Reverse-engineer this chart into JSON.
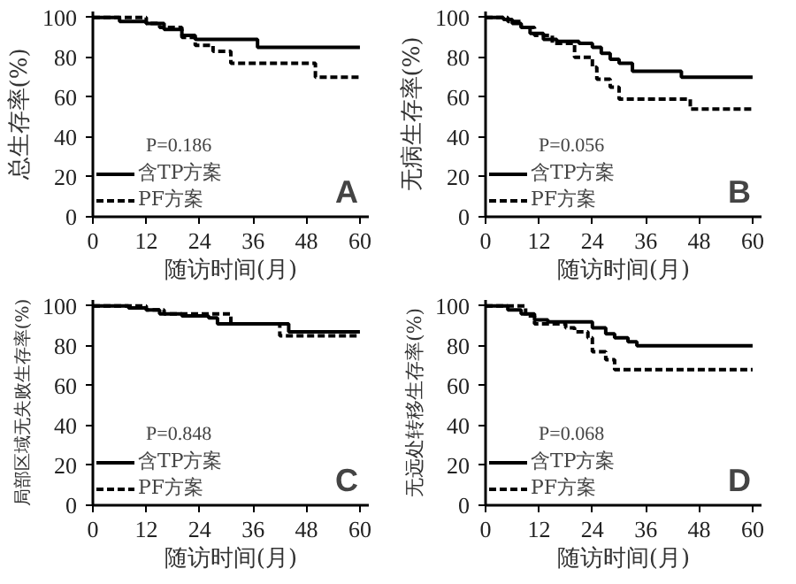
{
  "chart_data": [
    {
      "type": "step",
      "title": "A",
      "ylabel": "总生存率(%)",
      "xlabel": "随访时间(月)",
      "annotations": [
        "P=0.186"
      ],
      "xlim": [
        0,
        62
      ],
      "ylim": [
        0,
        103
      ],
      "xticks": [
        0,
        12,
        24,
        36,
        48,
        60
      ],
      "yticks": [
        0,
        20,
        40,
        60,
        80,
        100
      ],
      "legend": "bottom left",
      "grid": false,
      "series": [
        {
          "name": "含TP方案",
          "color": "#000000",
          "line_style": "solid",
          "x": [
            0,
            6,
            12,
            16,
            20,
            23,
            37,
            60
          ],
          "values": [
            100,
            98,
            97,
            94,
            91,
            89,
            85,
            85
          ]
        },
        {
          "name": "PF方案",
          "color": "#000000",
          "line_style": "dashed",
          "x": [
            0,
            12,
            15,
            20,
            23,
            27,
            31,
            50,
            60
          ],
          "values": [
            100,
            97,
            95,
            90,
            86,
            83,
            77,
            70,
            70
          ]
        }
      ]
    },
    {
      "type": "step",
      "title": "B",
      "ylabel": "无病生存率(%)",
      "xlabel": "随访时间(月)",
      "annotations": [
        "P=0.056"
      ],
      "xlim": [
        0,
        62
      ],
      "ylim": [
        0,
        103
      ],
      "xticks": [
        0,
        12,
        24,
        36,
        48,
        60
      ],
      "yticks": [
        0,
        20,
        40,
        60,
        80,
        100
      ],
      "legend": "bottom left",
      "grid": false,
      "series": [
        {
          "name": "含TP方案",
          "color": "#000000",
          "line_style": "solid",
          "x": [
            0,
            4,
            6,
            8,
            10,
            13,
            16,
            21,
            24,
            26,
            28,
            30,
            33,
            44,
            60
          ],
          "values": [
            100,
            99,
            97,
            95,
            92,
            89,
            88,
            87,
            85,
            82,
            79,
            77,
            73,
            70,
            70
          ]
        },
        {
          "name": "PF方案",
          "color": "#000000",
          "line_style": "dashed",
          "x": [
            0,
            5,
            8,
            11,
            15,
            20,
            24,
            25,
            28,
            30,
            46,
            60
          ],
          "values": [
            100,
            98,
            95,
            91,
            87,
            80,
            75,
            69,
            65,
            59,
            54,
            54
          ]
        }
      ]
    },
    {
      "type": "step",
      "title": "C",
      "ylabel": "局部区域无失败生存率(%)",
      "xlabel": "随访时间(月)",
      "annotations": [
        "P=0.848"
      ],
      "xlim": [
        0,
        62
      ],
      "ylim": [
        0,
        103
      ],
      "xticks": [
        0,
        12,
        24,
        36,
        48,
        60
      ],
      "yticks": [
        0,
        20,
        40,
        60,
        80,
        100
      ],
      "legend": "bottom left",
      "grid": false,
      "series": [
        {
          "name": "含TP方案",
          "color": "#000000",
          "line_style": "solid",
          "x": [
            0,
            8,
            12,
            15,
            20,
            26,
            28,
            44,
            60
          ],
          "values": [
            100,
            99,
            98,
            96,
            95,
            94,
            91,
            87,
            87
          ]
        },
        {
          "name": "PF方案",
          "color": "#000000",
          "line_style": "dashed",
          "x": [
            0,
            12,
            16,
            31,
            42,
            60
          ],
          "values": [
            100,
            98,
            96,
            91,
            85,
            85
          ]
        }
      ]
    },
    {
      "type": "step",
      "title": "D",
      "ylabel": "无远处转移生存率(%)",
      "xlabel": "随访时间(月)",
      "annotations": [
        "P=0.068"
      ],
      "xlim": [
        0,
        62
      ],
      "ylim": [
        0,
        103
      ],
      "xticks": [
        0,
        12,
        24,
        36,
        48,
        60
      ],
      "yticks": [
        0,
        20,
        40,
        60,
        80,
        100
      ],
      "legend": "bottom left",
      "grid": false,
      "series": [
        {
          "name": "含TP方案",
          "color": "#000000",
          "line_style": "solid",
          "x": [
            0,
            5,
            8,
            11,
            14,
            24,
            27,
            29,
            32,
            34,
            60
          ],
          "values": [
            100,
            98,
            96,
            93,
            92,
            89,
            86,
            84,
            82,
            80,
            80
          ]
        },
        {
          "name": "PF方案",
          "color": "#000000",
          "line_style": "dashed",
          "x": [
            0,
            9,
            11,
            18,
            20,
            23,
            24,
            27,
            29,
            60
          ],
          "values": [
            100,
            95,
            91,
            89,
            87,
            84,
            77,
            73,
            68,
            68
          ]
        }
      ]
    }
  ]
}
